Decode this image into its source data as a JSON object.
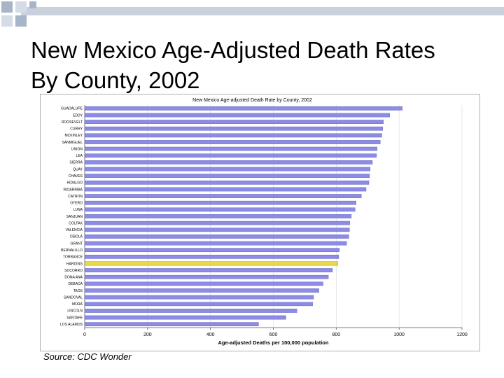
{
  "slide": {
    "title_line1": "New Mexico Age-Adjusted Death Rates",
    "title_line2": "By County, 2002",
    "source": "Source:  CDC Wonder"
  },
  "colors": {
    "bar": "#8c8ce6",
    "bar_edge": "#5a5ab4",
    "highlight": "#e8d84a",
    "highlight_edge": "#8a7a10",
    "deco_fill": "#a8b4c8",
    "deco_light": "#d6dce6"
  },
  "chart_data": {
    "type": "bar",
    "orientation": "horizontal",
    "title": "New Mexico Age-adjusted Death Rate by County, 2002",
    "xlabel": "Age-adjusted Deaths per 100,000 population",
    "ylabel": "",
    "xlim": [
      0,
      1200
    ],
    "xticks": [
      0,
      200,
      400,
      600,
      800,
      1000,
      1200
    ],
    "categories": [
      "GUADALUPE",
      "EDDY",
      "ROOSEVELT",
      "CURRY",
      "MCKINLEY",
      "SANMIGUEL",
      "UNION",
      "LEA",
      "SIERRA",
      "QUAY",
      "CHAVES",
      "HIDALGO",
      "RIOARRIBA",
      "CATRON",
      "OTERO",
      "LUNA",
      "SANJUAN",
      "COLFAX",
      "VALENCIA",
      "CIBOLA",
      "GRANT",
      "BERNALILLO",
      "TORRANCE",
      "HARDING",
      "SOCORRO",
      "DONA ANA",
      "DEBACA",
      "TAOS",
      "SANDOVAL",
      "MORA",
      "LINCOLN",
      "SANTAFE",
      "LOS ALAMOS"
    ],
    "values": [
      1010,
      970,
      950,
      948,
      945,
      940,
      930,
      928,
      915,
      908,
      906,
      904,
      895,
      880,
      863,
      860,
      848,
      843,
      842,
      840,
      833,
      810,
      808,
      805,
      788,
      775,
      758,
      745,
      728,
      725,
      675,
      640,
      553
    ],
    "highlight_category": "HARDING"
  }
}
